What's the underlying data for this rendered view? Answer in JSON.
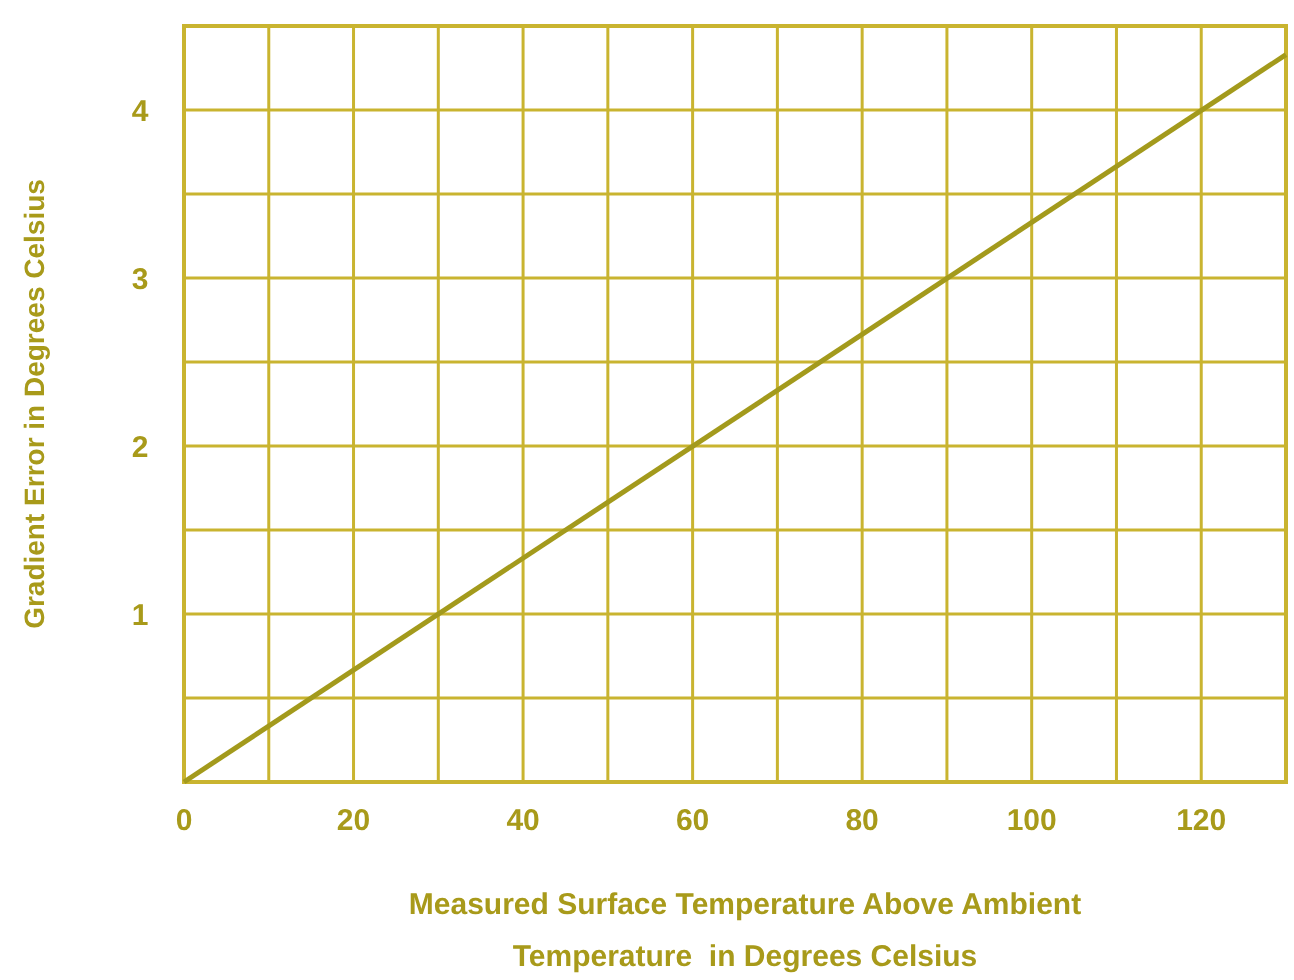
{
  "chart_data": {
    "type": "line",
    "xlabel": "Measured Surface Temperature Above Ambient\nTemperature  in Degrees Celsius",
    "ylabel": "Gradient Error in Degrees Celsius",
    "series": [
      {
        "color": "#a39a1c",
        "x": [
          0,
          130
        ],
        "values": [
          0,
          4.33
        ]
      }
    ],
    "xlim": [
      0,
      130
    ],
    "ylim": [
      0,
      4.5
    ],
    "xticks": [
      0,
      {
        "value": 10,
        "label": null
      },
      20,
      {
        "value": 30,
        "label": null
      },
      40,
      {
        "value": 50,
        "label": null
      },
      60,
      {
        "value": 70,
        "label": null
      },
      80,
      {
        "value": 90,
        "label": null
      },
      100,
      {
        "value": 110,
        "label": null
      },
      120,
      {
        "value": 130,
        "label": null
      }
    ],
    "yticks": [
      {
        "value": 0,
        "label": null
      },
      {
        "value": 0.5,
        "label": null
      },
      1,
      {
        "value": 1.5,
        "label": null
      },
      2,
      {
        "value": 2.5,
        "label": null
      },
      3,
      {
        "value": 3.5,
        "label": null
      },
      4,
      {
        "value": 4.5,
        "label": null
      }
    ],
    "grid": true,
    "marker": "none",
    "line_style": "solid"
  }
}
